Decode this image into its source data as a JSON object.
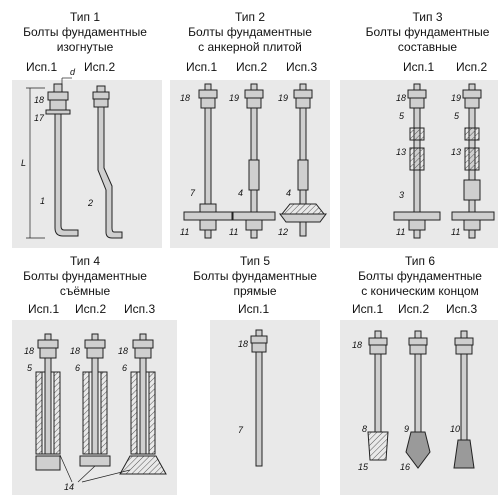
{
  "types": [
    {
      "title": "Тип 1",
      "line1": "Болты фундаментные",
      "line2": "изогнутые",
      "variants": [
        "Исп.1",
        "Исп.2"
      ]
    },
    {
      "title": "Тип 2",
      "line1": "Болты фундаментные",
      "line2": "с анкерной плитой",
      "variants": [
        "Исп.1",
        "Исп.2",
        "Исп.3"
      ]
    },
    {
      "title": "Тип 3",
      "line1": "Болты фундаментные",
      "line2": "составные",
      "variants": [
        "Исп.1",
        "Исп.2"
      ]
    },
    {
      "title": "Тип 4",
      "line1": "Болты фундаментные",
      "line2": "съёмные",
      "variants": [
        "Исп.1",
        "Исп.2",
        "Исп.3"
      ]
    },
    {
      "title": "Тип 5",
      "line1": "Болты фундаментные",
      "line2": "прямые",
      "variants": [
        "Исп.1"
      ]
    },
    {
      "title": "Тип 6",
      "line1": "Болты фундаментные",
      "line2": "с коническим концом",
      "variants": [
        "Исп.1",
        "Исп.2",
        "Исп.3"
      ]
    }
  ],
  "callouts": {
    "t1": [
      "18",
      "17",
      "1",
      "2"
    ],
    "dim": [
      "d",
      "L"
    ],
    "t2": [
      "18",
      "19",
      "19",
      "7",
      "4",
      "4",
      "11",
      "11",
      "12"
    ],
    "t3": [
      "18",
      "19",
      "5",
      "5",
      "13",
      "13",
      "3",
      "11",
      "11"
    ],
    "t4": [
      "18",
      "18",
      "18",
      "5",
      "6",
      "6",
      "14"
    ],
    "t5": [
      "18",
      "7"
    ],
    "t6": [
      "18",
      "8",
      "9",
      "10",
      "15",
      "16"
    ]
  },
  "colors": {
    "panel": "#e9e9e9",
    "line": "#222222",
    "steel": "#cfcfcf",
    "dark": "#555555"
  }
}
